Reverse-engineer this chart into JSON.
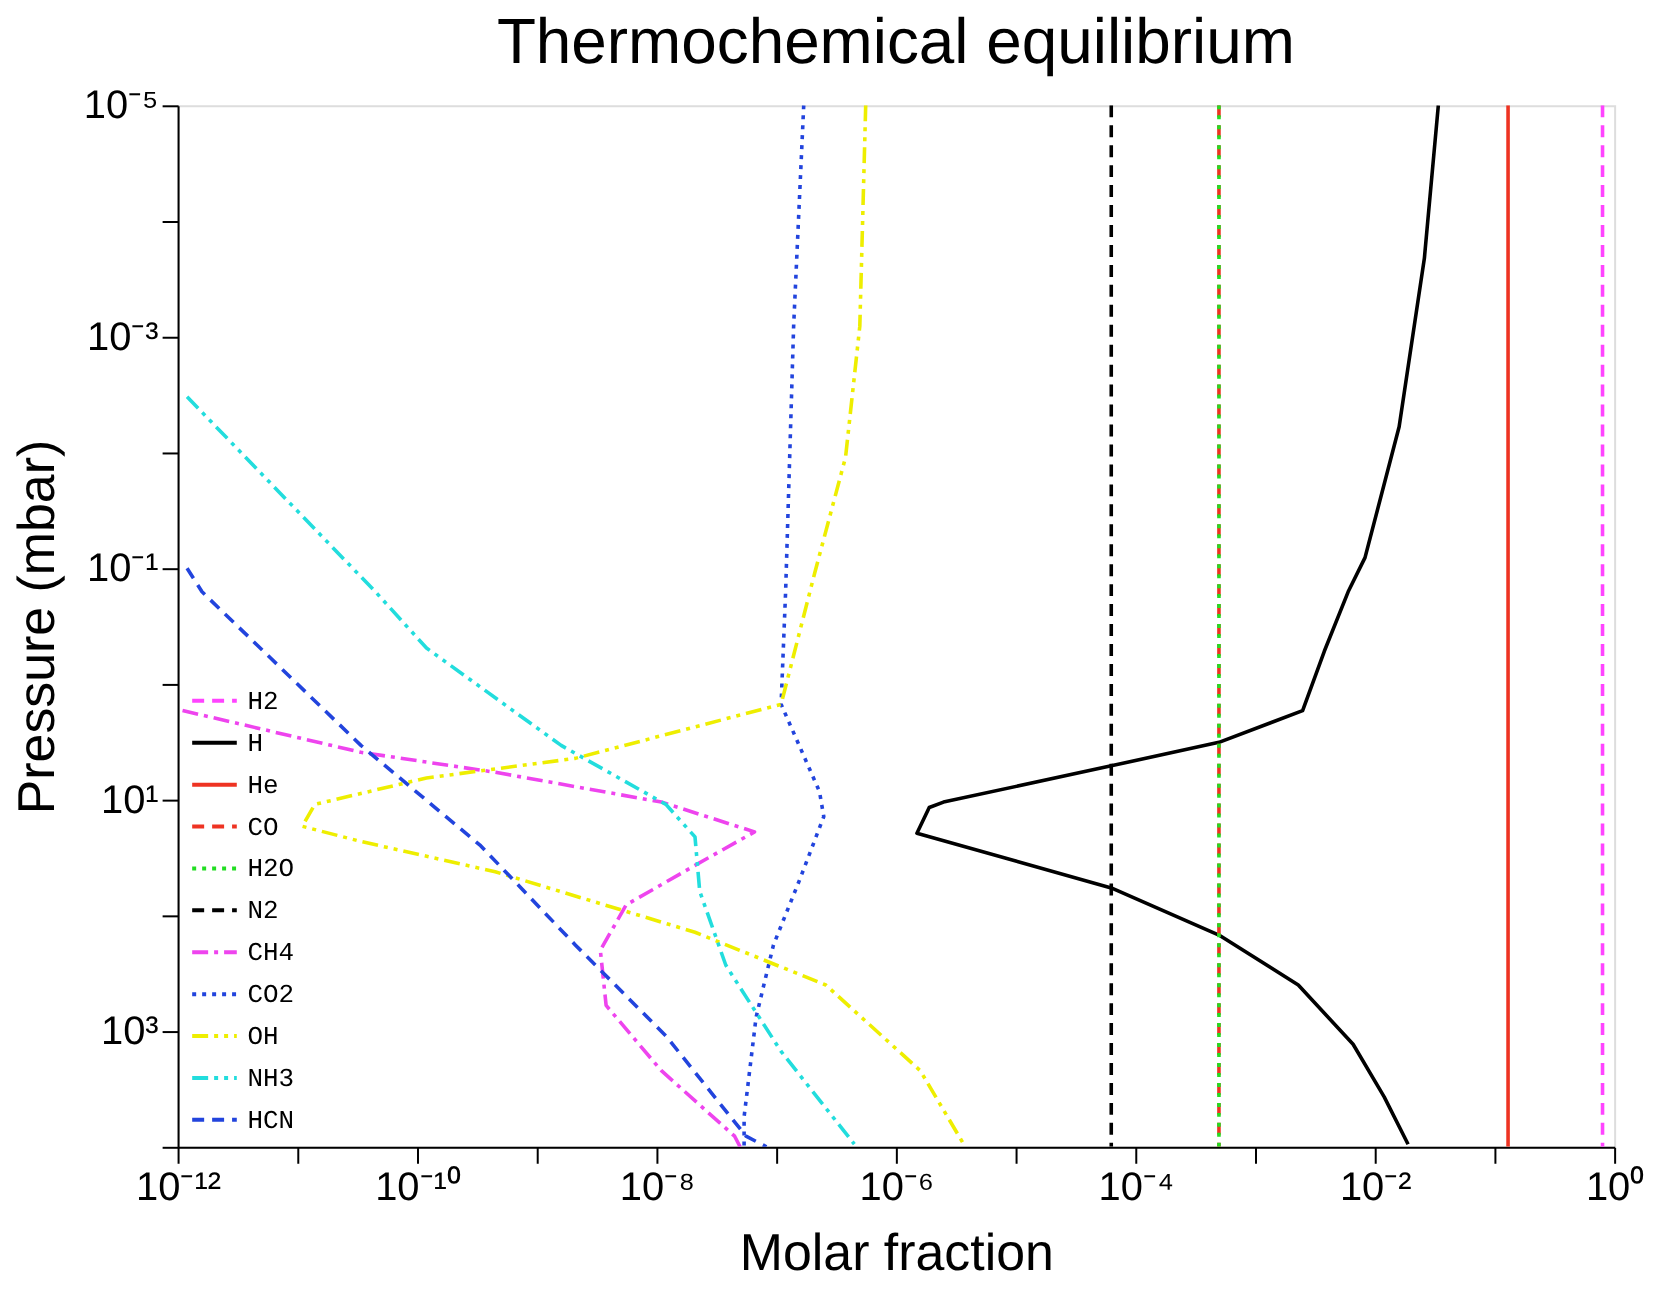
{
  "chart_data": {
    "type": "line",
    "title": "Thermochemical equilibrium",
    "xlabel": "Molar fraction",
    "ylabel": "Pressure (mbar)",
    "log": "xy",
    "xlim": [
      1e-12,
      1
    ],
    "ylim": [
      10000.0,
      1e-05
    ],
    "xticks": [
      {
        "value": 1e-12,
        "label": "10⁻¹²"
      },
      {
        "value": 1e-11,
        "label": null
      },
      {
        "value": 1e-10,
        "label": "10⁻¹⁰"
      },
      {
        "value": 1e-09,
        "label": null
      },
      {
        "value": 1e-08,
        "label": "10⁻⁸"
      },
      {
        "value": 1e-07,
        "label": null
      },
      {
        "value": 1e-06,
        "label": "10⁻⁶"
      },
      {
        "value": 1e-05,
        "label": null
      },
      {
        "value": 0.0001,
        "label": "10⁻⁴"
      },
      {
        "value": 0.001,
        "label": null
      },
      {
        "value": 0.01,
        "label": "10⁻²"
      },
      {
        "value": 0.1,
        "label": null
      },
      {
        "value": 1,
        "label": "10⁰"
      }
    ],
    "yticks": [
      {
        "value": 1e-05,
        "label": "10⁻⁵"
      },
      {
        "value": 0.0001,
        "label": null
      },
      {
        "value": 0.001,
        "label": "10⁻³"
      },
      {
        "value": 0.01,
        "label": null
      },
      {
        "value": 0.1,
        "label": "10⁻¹"
      },
      {
        "value": 1,
        "label": null
      },
      {
        "value": 10,
        "label": "10¹"
      },
      {
        "value": 100,
        "label": null
      },
      {
        "value": 1000,
        "label": "10³"
      },
      {
        "value": 10000.0,
        "label": null
      }
    ],
    "grid": false,
    "legend": "bottom left",
    "marker": "none",
    "series": [
      {
        "name": "H2",
        "color": "#ff44ff",
        "line_style": "dashed",
        "x": [
          0.8,
          0.8
        ],
        "values": [
          1e-05,
          10000.0
        ]
      },
      {
        "name": "H",
        "color": "#000000",
        "line_style": "solid",
        "x": [
          0.034,
          0.026,
          0.016,
          0.0083,
          0.006,
          0.0038,
          0.0025,
          0.0005,
          6.3e-05,
          2.5e-06,
          1.9e-06,
          1.5e-06,
          6.3e-05,
          0.0005,
          0.0023,
          0.0066,
          0.012,
          0.019
        ],
        "values": [
          1e-05,
          0.00021,
          0.006,
          0.081,
          0.16,
          0.52,
          1.7,
          3.2,
          5.1,
          10.5,
          11.7,
          19.5,
          58,
          148,
          400,
          1300,
          3700,
          9500
        ]
      },
      {
        "name": "He",
        "color": "#ee3322",
        "line_style": "solid",
        "x": [
          0.13,
          0.13
        ],
        "values": [
          1e-05,
          10000.0
        ]
      },
      {
        "name": "CO",
        "color": "#ee3322",
        "line_style": "dashed",
        "x": [
          0.0005,
          0.0005
        ],
        "values": [
          1e-05,
          10000.0
        ]
      },
      {
        "name": "H2O",
        "color": "#22dd22",
        "line_style": "dotted",
        "x": [
          0.0005,
          0.0005
        ],
        "values": [
          1e-05,
          10000.0
        ]
      },
      {
        "name": "N2",
        "color": "#000000",
        "line_style": "dashed",
        "x": [
          6.3e-05,
          6.3e-05
        ],
        "values": [
          1e-05,
          10000.0
        ]
      },
      {
        "name": "CH4",
        "color": "#ee44ee",
        "line_style": "dashdot",
        "x": [
          1.1e-12,
          3.4e-11,
          4.5e-10,
          1.1e-08,
          6.6e-08,
          2.1e-08,
          5.6e-09,
          3.4e-09,
          3.8e-09,
          1.1e-08,
          4.5e-08,
          5e-08
        ],
        "values": [
          1.7,
          3.9,
          5.8,
          10.5,
          19,
          37,
          81,
          200,
          600,
          2200,
          8100,
          10000.0
        ]
      },
      {
        "name": "CO2",
        "color": "#2244dd",
        "line_style": "dotted",
        "x": [
          1.7e-07,
          1.4e-07,
          1.2e-07,
          1.1e-07,
          2.3e-07,
          2.5e-07,
          1.6e-07,
          9.5e-08,
          6.8e-08,
          5.4e-08,
          5.4e-08
        ],
        "values": [
          1e-05,
          0.00081,
          0.16,
          1.5,
          8.5,
          14,
          47,
          180,
          760,
          5500,
          10000.0
        ]
      },
      {
        "name": "OH",
        "color": "#eeee00",
        "line_style": "dashdotdot",
        "x": [
          5.6e-07,
          5e-07,
          3.8e-07,
          2.1e-07,
          1.1e-07,
          2.1e-09,
          1.2e-10,
          1.4e-11,
          1.1e-11,
          3.4e-11,
          4.5e-10,
          2.1e-08,
          2.6e-07,
          1.6e-06,
          3.8e-06
        ],
        "values": [
          1e-05,
          0.00081,
          0.011,
          0.11,
          1.5,
          4.4,
          6.5,
          11,
          17,
          23,
          42,
          140,
          400,
          2200,
          10000.0
        ]
      },
      {
        "name": "NH3",
        "color": "#22dddd",
        "line_style": "dashdotdot",
        "x": [
          1.2e-12,
          4.5e-11,
          1.2e-10,
          1.6e-09,
          1.2e-08,
          2.1e-08,
          2.3e-08,
          3.8e-08,
          1.1e-07,
          4.5e-07
        ],
        "values": [
          0.0033,
          0.16,
          0.49,
          3.4,
          11,
          21,
          62,
          270,
          1500,
          9500
        ]
      },
      {
        "name": "HCN",
        "color": "#2244dd",
        "line_style": "dashed",
        "x": [
          1.2e-12,
          1.6e-12,
          3.4e-11,
          3.4e-10,
          2.1e-09,
          1.2e-08,
          5.6e-08,
          8.3e-08
        ],
        "values": [
          0.1,
          0.16,
          3.4,
          25,
          180,
          1100,
          8100,
          10000.0
        ]
      }
    ]
  }
}
